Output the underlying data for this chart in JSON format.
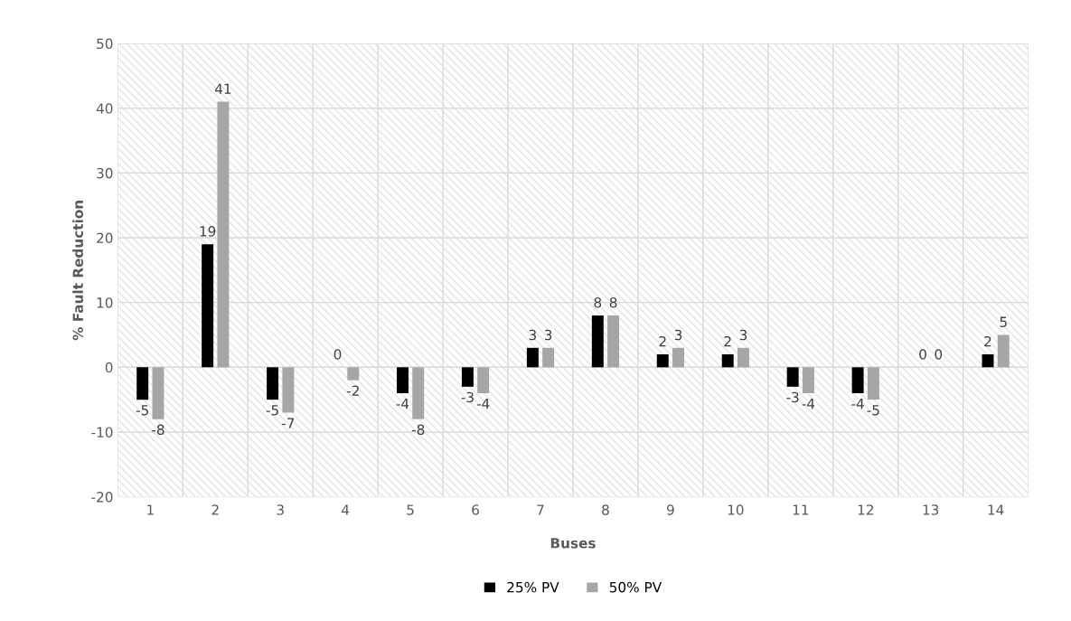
{
  "chart_data": {
    "type": "bar",
    "xlabel": "Buses",
    "ylabel": "% Fault Reduction",
    "categories": [
      "1",
      "2",
      "3",
      "4",
      "5",
      "6",
      "7",
      "8",
      "9",
      "10",
      "11",
      "12",
      "13",
      "14"
    ],
    "series": [
      {
        "name": "25% PV",
        "color": "#000000",
        "values": [
          -5,
          19,
          -5,
          0,
          -4,
          -3,
          3,
          8,
          2,
          2,
          -3,
          -4,
          0,
          2
        ]
      },
      {
        "name": "50% PV",
        "color": "#a6a6a6",
        "values": [
          -8,
          41,
          -7,
          -2,
          -8,
          -4,
          3,
          8,
          3,
          3,
          -4,
          -5,
          0,
          5
        ]
      }
    ],
    "ylim": [
      -20,
      50
    ],
    "yticks": [
      -20,
      -10,
      0,
      10,
      20,
      30,
      40,
      50
    ],
    "grid": true,
    "legend": "bottom",
    "data_labels": true
  }
}
